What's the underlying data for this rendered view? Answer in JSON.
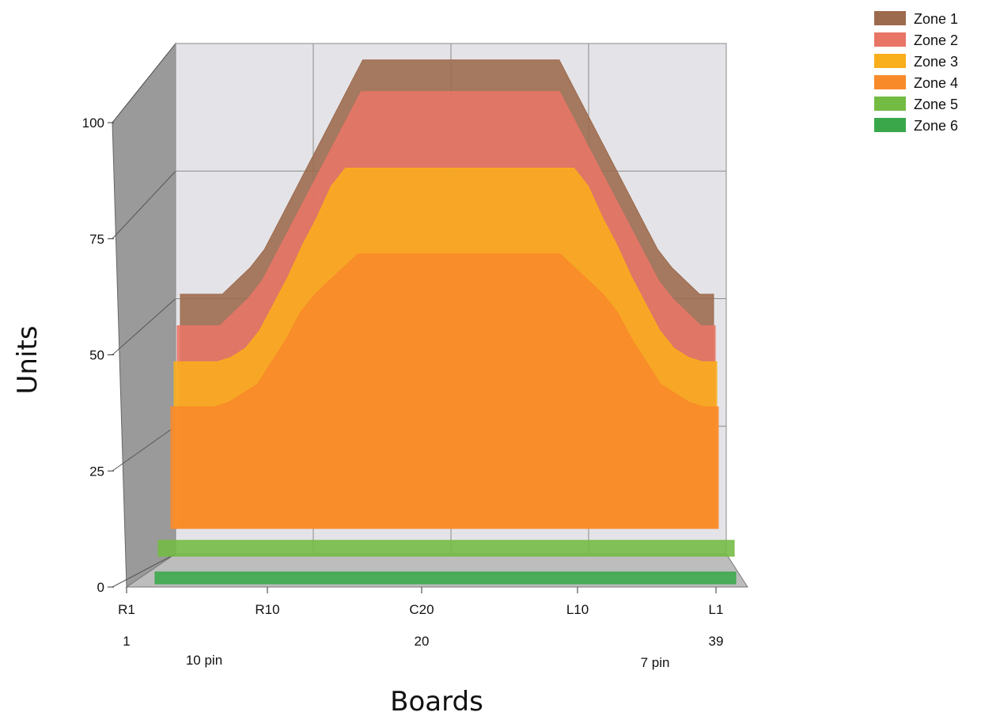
{
  "chart_data": {
    "type": "area",
    "subtype": "3d-stacked-area",
    "title": "",
    "xlabel": "Boards",
    "ylabel": "Units",
    "ylim": [
      0,
      100
    ],
    "yticks": [
      0,
      25,
      50,
      75,
      100
    ],
    "x_tick_labels": [
      "R1",
      "R10",
      "C20",
      "L10",
      "L1"
    ],
    "x_sub_labels": [
      "1",
      "20",
      "39"
    ],
    "annotations": [
      "10 pin",
      "7 pin"
    ],
    "grid": true,
    "legend": "top-right",
    "x": [
      1,
      2,
      3,
      4,
      5,
      6,
      7,
      8,
      9,
      10,
      11,
      12,
      13,
      14,
      15,
      16,
      17,
      18,
      19,
      20,
      21,
      22,
      23,
      24,
      25,
      26,
      27,
      28,
      29,
      30,
      31,
      32,
      33,
      34,
      35,
      36,
      37,
      38,
      39
    ],
    "series": [
      {
        "name": "Zone 1",
        "color": "#9c6a4c",
        "values": [
          52,
          52,
          52,
          52,
          55,
          58,
          62,
          68,
          74,
          80,
          86,
          92,
          98,
          104,
          104,
          104,
          104,
          104,
          104,
          104,
          104,
          104,
          104,
          104,
          104,
          104,
          104,
          104,
          98,
          92,
          86,
          80,
          74,
          68,
          62,
          58,
          55,
          52,
          52
        ]
      },
      {
        "name": "Zone 2",
        "color": "#e87566",
        "values": [
          45,
          45,
          45,
          45,
          48,
          51,
          55,
          61,
          67,
          73,
          79,
          85,
          91,
          97,
          97,
          97,
          97,
          97,
          97,
          97,
          97,
          97,
          97,
          97,
          97,
          97,
          97,
          97,
          91,
          85,
          79,
          73,
          67,
          61,
          55,
          51,
          48,
          45,
          45
        ]
      },
      {
        "name": "Zone 3",
        "color": "#f9ae1c",
        "values": [
          37,
          37,
          37,
          37,
          38,
          40,
          44,
          50,
          56,
          63,
          69,
          76,
          80,
          80,
          80,
          80,
          80,
          80,
          80,
          80,
          80,
          80,
          80,
          80,
          80,
          80,
          80,
          80,
          80,
          76,
          69,
          63,
          56,
          50,
          44,
          40,
          38,
          37,
          37
        ]
      },
      {
        "name": "Zone 4",
        "color": "#f98a2a",
        "values": [
          27,
          27,
          27,
          27,
          28,
          30,
          32,
          37,
          42,
          48,
          52,
          55,
          58,
          61,
          61,
          61,
          61,
          61,
          61,
          61,
          61,
          61,
          61,
          61,
          61,
          61,
          61,
          61,
          58,
          55,
          52,
          48,
          42,
          37,
          32,
          30,
          28,
          27,
          27
        ]
      },
      {
        "name": "Zone 5",
        "color": "#73bb42",
        "values": [
          4,
          4,
          4,
          4,
          4,
          4,
          4,
          4,
          4,
          4,
          4,
          4,
          4,
          4,
          4,
          4,
          4,
          4,
          4,
          4,
          4,
          4,
          4,
          4,
          4,
          4,
          4,
          4,
          4,
          4,
          4,
          4,
          4,
          4,
          4,
          4,
          4,
          4,
          4
        ]
      },
      {
        "name": "Zone 6",
        "color": "#3aa84a",
        "values": [
          3,
          3,
          3,
          3,
          3,
          3,
          3,
          3,
          3,
          3,
          3,
          3,
          3,
          3,
          3,
          3,
          3,
          3,
          3,
          3,
          3,
          3,
          3,
          3,
          3,
          3,
          3,
          3,
          3,
          3,
          3,
          3,
          3,
          3,
          3,
          3,
          3,
          3,
          3
        ]
      }
    ]
  }
}
